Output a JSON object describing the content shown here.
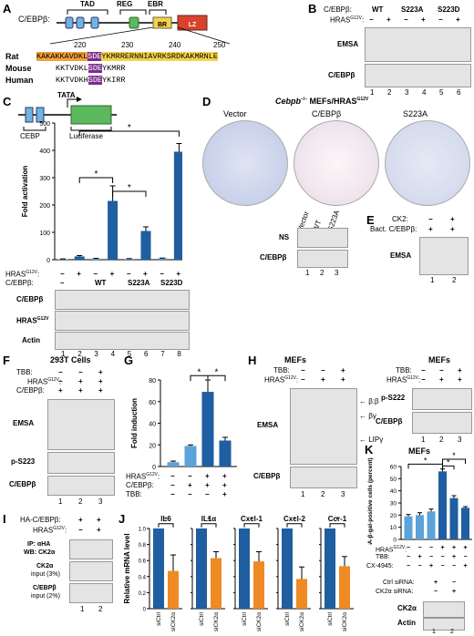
{
  "panels": [
    "A",
    "B",
    "C",
    "D",
    "E",
    "F",
    "G",
    "H",
    "I",
    "J",
    "K"
  ],
  "panelA": {
    "protein": "C/EBPβ:",
    "domains": [
      "TAD",
      "REG",
      "EBR",
      "BR",
      "LZ"
    ],
    "positions": [
      "220",
      "230",
      "240",
      "250"
    ],
    "species": [
      "Rat",
      "Mouse",
      "Human"
    ],
    "rat_seq": {
      "pre": "KAKAKKAVDKL",
      "site": "SDE",
      "post": "YKMRRERNNIAVRKSRDKAKMRNLE"
    },
    "mouse_seq": {
      "pre": "KKTVDKL",
      "site": "SDE",
      "post": "YKMRR"
    },
    "human_seq": {
      "pre": "KKTVDKH",
      "site": "SDE",
      "post": "YKIRR"
    }
  },
  "panelB": {
    "row1_label": "C/EBPβ:",
    "row2_label": "HRAS",
    "groups": [
      "WT",
      "S223A",
      "S223D"
    ],
    "signs": [
      "−",
      "+",
      "−",
      "+",
      "−",
      "+"
    ],
    "blots": [
      "EMSA",
      "C/EBPβ"
    ],
    "lanes": [
      "1",
      "2",
      "3",
      "4",
      "5",
      "6"
    ]
  },
  "panelC": {
    "tata": "TATA",
    "boxes": [
      "CEBP",
      "Luciferase"
    ],
    "ylabel": "Fold activation",
    "yticks": [
      "0",
      "100",
      "200",
      "300",
      "400",
      "500"
    ],
    "row1_label": "HRAS",
    "row2_label": "C/EBPβ:",
    "signs": [
      "−",
      "+",
      "−",
      "+",
      "−",
      "+",
      "−",
      "+"
    ],
    "groups": [
      "–",
      "WT",
      "S223A",
      "S223D"
    ],
    "blots": [
      "C/EBPβ",
      "HRAS",
      "Actin"
    ],
    "lanes": [
      "1",
      "2",
      "3",
      "4",
      "5",
      "6",
      "7",
      "8"
    ],
    "star": "*"
  },
  "chart_data": {
    "type": "bar",
    "categories": [
      "1",
      "2",
      "3",
      "4",
      "5",
      "6",
      "7",
      "8"
    ],
    "values": [
      2,
      12,
      4,
      215,
      3,
      105,
      5,
      395
    ],
    "errors": [
      1,
      3,
      1,
      55,
      1,
      15,
      1,
      30
    ],
    "ylim": [
      0,
      500
    ],
    "ylabel": "Fold activation"
  },
  "panelD": {
    "title": "Cebpb",
    "title_rest": "MEFs/HRAS",
    "dishes": [
      "Vector",
      "C/EBPβ",
      "S223A"
    ],
    "blot_cols": [
      "Vector",
      "WT",
      "S223A"
    ],
    "blots": [
      "NS",
      "C/EBPβ"
    ],
    "lanes": [
      "1",
      "2",
      "3"
    ]
  },
  "panelE": {
    "row1_label": "CK2:",
    "row2_label": "Bact. C/EBPβ:",
    "row1": [
      "−",
      "+"
    ],
    "row2": [
      "+",
      "+"
    ],
    "blots": [
      "EMSA"
    ],
    "lanes": [
      "1",
      "2"
    ]
  },
  "panelF": {
    "title": "293T Cells",
    "rows": [
      "TBB:",
      "HRAS",
      "C/EBPβ:"
    ],
    "vals": [
      [
        "−",
        "−",
        "+"
      ],
      [
        "−",
        "+",
        "+"
      ],
      [
        "+",
        "+",
        "+"
      ]
    ],
    "blots": [
      "EMSA",
      "p-S223",
      "C/EBPβ"
    ],
    "lanes": [
      "1",
      "2",
      "3"
    ]
  },
  "panelG": {
    "ylabel": "Fold induction",
    "yticks": [
      "0",
      "20",
      "40",
      "60",
      "80"
    ],
    "rows": [
      "HRAS",
      "C/EBPβ:",
      "TBB:"
    ],
    "vals": [
      [
        "−",
        "−",
        "+",
        "+"
      ],
      [
        "−",
        "+",
        "+",
        "+"
      ],
      [
        "−",
        "−",
        "−",
        "+"
      ]
    ],
    "values": [
      4,
      19,
      69,
      24
    ],
    "errors": [
      1,
      1,
      11,
      3
    ],
    "colors": [
      "#5ba3d8",
      "#5ba3d8",
      "#1f5ea0",
      "#1f5ea0"
    ],
    "star": "*"
  },
  "panelH": {
    "title": "MEFs",
    "rows": [
      "TBB:",
      "HRAS"
    ],
    "vals": [
      [
        "−",
        "−",
        "+"
      ],
      [
        "−",
        "+",
        "+"
      ]
    ],
    "blots": [
      "EMSA",
      "C/EBPβ"
    ],
    "arrows": [
      "β:β",
      "βγ",
      "LIPγ"
    ],
    "lanes": [
      "1",
      "2",
      "3"
    ],
    "right_blots": [
      "p-S222",
      "C/EBPβ"
    ]
  },
  "panelI": {
    "row1_label": "HA-C/EBPβ:",
    "row2_label": "HRAS",
    "row1": [
      "+",
      "+"
    ],
    "row2": [
      "−",
      "+"
    ],
    "ip": "IP: αHA",
    "wb": "WB: CK2α",
    "blots": [
      "CK2α",
      "input (3%)",
      "C/EBPβ",
      "input (2%)"
    ],
    "lanes": [
      "1",
      "2"
    ]
  },
  "panelJ": {
    "ylabel": "Relative mRNA level",
    "yticks": [
      "0",
      "0.2",
      "0.4",
      "0.6",
      "0.8",
      "1.0"
    ],
    "genes": [
      "IL6",
      "IL1α",
      "Cxcl-1",
      "Cxcl-2",
      "Ccr-1"
    ],
    "ctrl_values": [
      1.0,
      1.0,
      1.0,
      1.0,
      1.0
    ],
    "kd_values": [
      0.47,
      0.63,
      0.59,
      0.37,
      0.53
    ],
    "kd_errors": [
      0.2,
      0.08,
      0.12,
      0.15,
      0.12
    ],
    "xlabels": [
      "siCtrl",
      "siCK2α"
    ],
    "colors": [
      "#1f5ea0",
      "#f08a24"
    ],
    "star": "*"
  },
  "panelK": {
    "title": "MEFs",
    "ylabel": "SA-β-gal-positive cells (percent)",
    "yticks": [
      "0",
      "10",
      "20",
      "30",
      "40",
      "50",
      "60"
    ],
    "rows": [
      "HRAS",
      "TBB:",
      "CX-4945:"
    ],
    "vals": [
      [
        "−",
        "−",
        "−",
        "+",
        "+",
        "+"
      ],
      [
        "−",
        "+",
        "−",
        "−",
        "+",
        "−"
      ],
      [
        "−",
        "−",
        "+",
        "−",
        "−",
        "+"
      ]
    ],
    "values": [
      19,
      20,
      23,
      56,
      34,
      26
    ],
    "errors": [
      1.5,
      2,
      2,
      2,
      2,
      1
    ],
    "colors": [
      "#5ba3d8",
      "#5ba3d8",
      "#5ba3d8",
      "#1f5ea0",
      "#1f5ea0",
      "#1f5ea0"
    ],
    "sirna_rows": [
      "Ctrl siRNA:",
      "CK2α siRNA:"
    ],
    "sirna_vals": [
      [
        "+",
        "−"
      ],
      [
        "−",
        "+"
      ]
    ],
    "blots": [
      "CK2α",
      "Actin"
    ],
    "lanes": [
      "1",
      "2"
    ],
    "star": "*"
  },
  "superscript": "G12V"
}
